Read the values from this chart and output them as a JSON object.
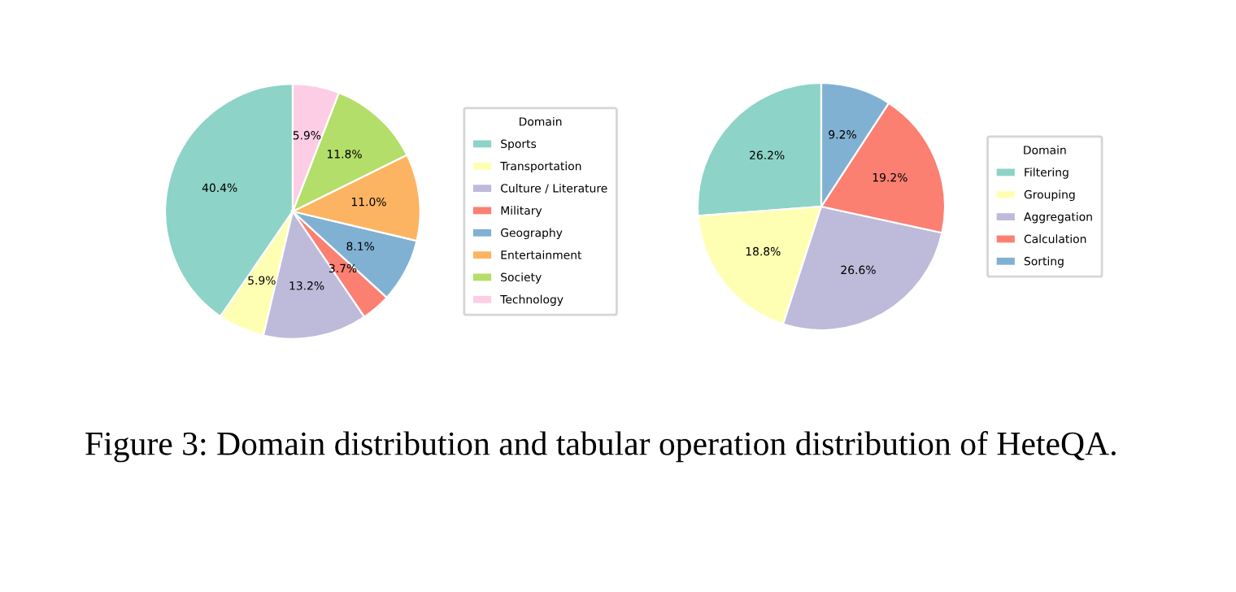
{
  "chart_data": [
    {
      "type": "pie",
      "legend_title": "Domain",
      "legend": "right",
      "categories": [
        "Sports",
        "Transportation",
        "Culture / Literature",
        "Military",
        "Geography",
        "Entertainment",
        "Society",
        "Technology"
      ],
      "values": [
        40.4,
        5.9,
        13.2,
        3.7,
        8.1,
        11.0,
        11.8,
        5.9
      ],
      "value_labels": [
        "40.4%",
        "5.9%",
        "13.2%",
        "3.7%",
        "8.1%",
        "11.0%",
        "11.8%",
        "5.9%"
      ],
      "colors": [
        "#8dd3c7",
        "#ffffb3",
        "#bebada",
        "#fb8072",
        "#80b1d3",
        "#fdb462",
        "#b3de69",
        "#fccde5"
      ],
      "annotations": [
        "Figure 3: Domain distribution and tabular operation distribution of HeteQA."
      ]
    },
    {
      "type": "pie",
      "legend_title": "Domain",
      "legend": "right",
      "categories": [
        "Filtering",
        "Grouping",
        "Aggregation",
        "Calculation",
        "Sorting"
      ],
      "values": [
        26.2,
        18.8,
        26.6,
        19.2,
        9.2
      ],
      "value_labels": [
        "26.2%",
        "18.8%",
        "26.6%",
        "19.2%",
        "9.2%"
      ],
      "colors": [
        "#8dd3c7",
        "#ffffb3",
        "#bebada",
        "#fb8072",
        "#80b1d3"
      ]
    }
  ]
}
